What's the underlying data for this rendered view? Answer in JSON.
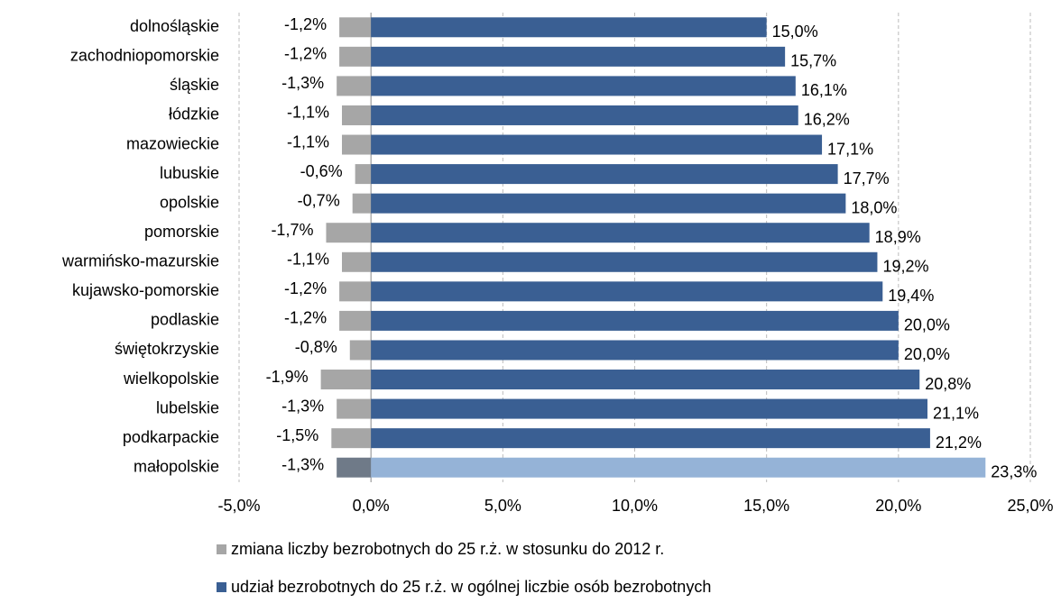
{
  "chart_data": {
    "type": "bar",
    "orientation": "horizontal",
    "categories": [
      "dolnośląskie",
      "zachodniopomorskie",
      "śląskie",
      "łódzkie",
      "mazowieckie",
      "lubuskie",
      "opolskie",
      "pomorskie",
      "warmińsko-mazurskie",
      "kujawsko-pomorskie",
      "podlaskie",
      "świętokrzyskie",
      "wielkopolskie",
      "lubelskie",
      "podkarpackie",
      "małopolskie"
    ],
    "series": [
      {
        "name": "zmiana liczby bezrobotnych do 25 r.ż. w stosunku do 2012 r.",
        "color": "#a6a6a6",
        "colors": [
          "#a6a6a6",
          "#a6a6a6",
          "#a6a6a6",
          "#a6a6a6",
          "#a6a6a6",
          "#a6a6a6",
          "#a6a6a6",
          "#a6a6a6",
          "#a6a6a6",
          "#a6a6a6",
          "#a6a6a6",
          "#a6a6a6",
          "#a6a6a6",
          "#a6a6a6",
          "#a6a6a6",
          "#6f7a88"
        ],
        "values": [
          -1.2,
          -1.2,
          -1.3,
          -1.1,
          -1.1,
          -0.6,
          -0.7,
          -1.7,
          -1.1,
          -1.2,
          -1.2,
          -0.8,
          -1.9,
          -1.3,
          -1.5,
          -1.3
        ],
        "value_labels": [
          "-1,2%",
          "-1,2%",
          "-1,3%",
          "-1,1%",
          "-1,1%",
          "-0,6%",
          "-0,7%",
          "-1,7%",
          "-1,1%",
          "-1,2%",
          "-1,2%",
          "-0,8%",
          "-1,9%",
          "-1,3%",
          "-1,5%",
          "-1,3%"
        ]
      },
      {
        "name": "udział bezrobotnych do 25 r.ż. w ogólnej liczbie osób bezrobotnych",
        "color": "#3a5f93",
        "colors": [
          "#3a5f93",
          "#3a5f93",
          "#3a5f93",
          "#3a5f93",
          "#3a5f93",
          "#3a5f93",
          "#3a5f93",
          "#3a5f93",
          "#3a5f93",
          "#3a5f93",
          "#3a5f93",
          "#3a5f93",
          "#3a5f93",
          "#3a5f93",
          "#3a5f93",
          "#95b3d7"
        ],
        "values": [
          15.0,
          15.7,
          16.1,
          16.2,
          17.1,
          17.7,
          18.0,
          18.9,
          19.2,
          19.4,
          20.0,
          20.0,
          20.8,
          21.1,
          21.2,
          23.3
        ],
        "value_labels": [
          "15,0%",
          "15,7%",
          "16,1%",
          "16,2%",
          "17,1%",
          "17,7%",
          "18,0%",
          "18,9%",
          "19,2%",
          "19,4%",
          "20,0%",
          "20,0%",
          "20,8%",
          "21,1%",
          "21,2%",
          "23,3%"
        ]
      }
    ],
    "xlim": [
      -5,
      25
    ],
    "xticks": [
      {
        "value": -5,
        "label": "-5,0%"
      },
      {
        "value": 0,
        "label": "0,0%"
      },
      {
        "value": 5,
        "label": "5,0%"
      },
      {
        "value": 10,
        "label": "10,0%"
      },
      {
        "value": 15,
        "label": "15,0%"
      },
      {
        "value": 20,
        "label": "20,0%"
      },
      {
        "value": 25,
        "label": "25,0%"
      }
    ],
    "grid": true,
    "legend": "bottom"
  }
}
